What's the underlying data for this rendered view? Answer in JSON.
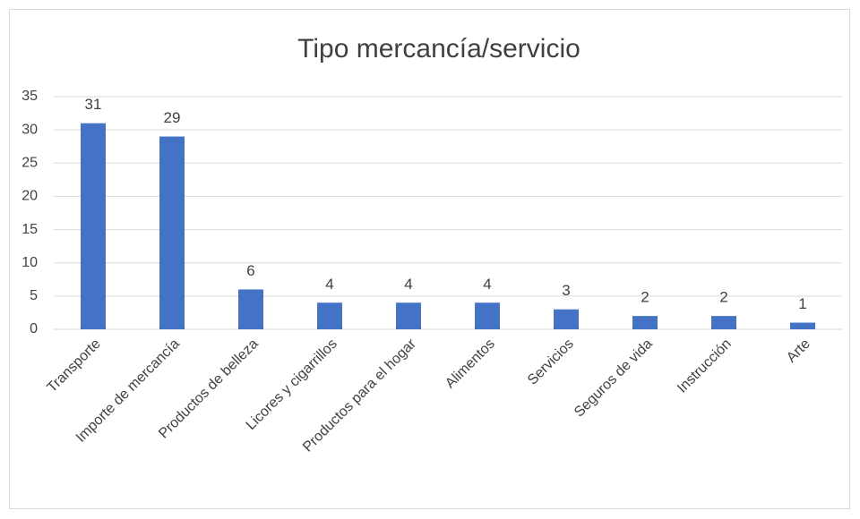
{
  "chart_data": {
    "type": "bar",
    "title": "Tipo mercancía/servicio",
    "categories": [
      "Transporte",
      "Importe de mercancía",
      "Productos de belleza",
      "Licores y cigarrillos",
      "Productos para el hogar",
      "Alimentos",
      "Servicios",
      "Seguros de vida",
      "Instrucción",
      "Arte"
    ],
    "values": [
      31,
      29,
      6,
      4,
      4,
      4,
      3,
      2,
      2,
      1
    ],
    "color": "#4472c4",
    "ylim": [
      0,
      35
    ],
    "yticks": [
      0,
      5,
      10,
      15,
      20,
      25,
      30,
      35
    ],
    "grid": true
  }
}
